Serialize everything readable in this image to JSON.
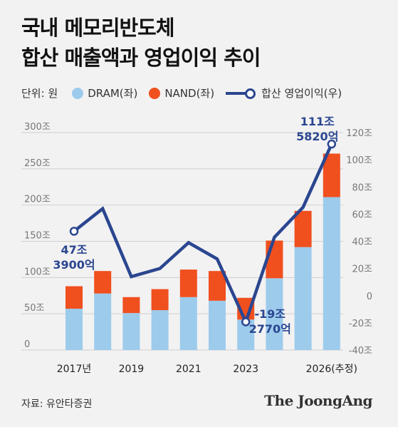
{
  "title": {
    "line1": "국내 메모리반도체",
    "line2": "합산 매출액과 영업이익 추이"
  },
  "legend": {
    "unit": "단위: 원",
    "dram": "DRAM(좌)",
    "nand": "NAND(좌)",
    "profit": "합산 영업이익(우)"
  },
  "colors": {
    "dram": "#9ccbec",
    "nand": "#f04f1e",
    "profit": "#2b4690",
    "background": "#f2f2f2"
  },
  "chart_data": {
    "type": "bar",
    "categories": [
      "2017",
      "2018",
      "2019",
      "2020",
      "2021",
      "2022",
      "2023",
      "2024",
      "2025",
      "2026"
    ],
    "x_tick_labels": [
      "2017년",
      "2019",
      "2021",
      "2023",
      "2026(추정)"
    ],
    "x_tick_categories": [
      "2017",
      "2019",
      "2021",
      "2023",
      "2026"
    ],
    "series": [
      {
        "name": "DRAM(좌)",
        "axis": "left",
        "values": [
          57,
          78,
          51,
          55,
          73,
          68,
          42,
          99,
          142,
          211
        ]
      },
      {
        "name": "NAND(좌)",
        "axis": "left",
        "values": [
          31,
          31,
          22,
          29,
          38,
          41,
          30,
          52,
          50,
          60
        ]
      },
      {
        "name": "합산 영업이익(우)",
        "axis": "right",
        "type": "line",
        "values": [
          47.39,
          64,
          14,
          20,
          39,
          27,
          -19.277,
          43,
          65,
          111.582
        ]
      }
    ],
    "left_axis": {
      "ylim": [
        0,
        300
      ],
      "ticks": [
        0,
        50,
        100,
        150,
        200,
        250,
        300
      ],
      "tick_labels": [
        "0",
        "50조",
        "100조",
        "150조",
        "200조",
        "250조",
        "300조"
      ]
    },
    "right_axis": {
      "ylim": [
        -40,
        120
      ],
      "ticks": [
        -40,
        -20,
        0,
        20,
        40,
        60,
        80,
        100,
        120
      ],
      "tick_labels": [
        "-40조",
        "-20조",
        "0",
        "20조",
        "40조",
        "60조",
        "80조",
        "100조",
        "120조"
      ]
    },
    "annotations": [
      {
        "category": "2017",
        "line1": "47조",
        "line2": "3900억"
      },
      {
        "category": "2023",
        "line1": "-19조",
        "line2": "2770억"
      },
      {
        "category": "2026",
        "line1": "111조",
        "line2": "5820억"
      }
    ],
    "grid": true,
    "legend_position": "top-left"
  },
  "source": "자료: 유안타증권",
  "logo": "The JoongAng"
}
